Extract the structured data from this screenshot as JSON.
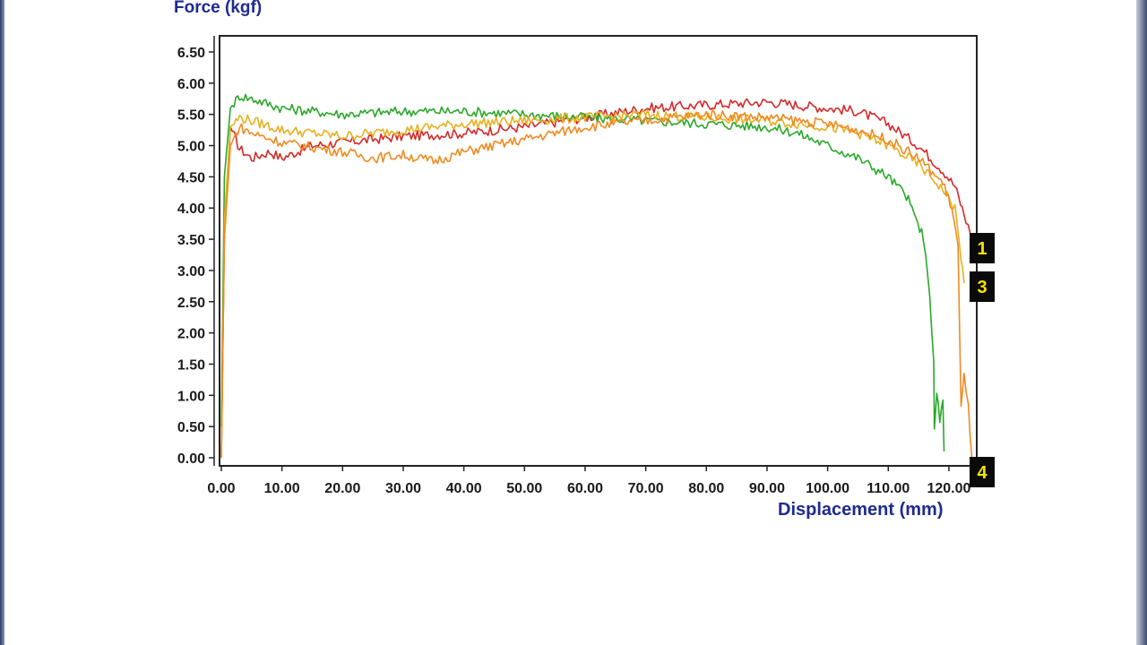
{
  "chart_data": {
    "type": "line",
    "ylabel": "Force (kgf)",
    "xlabel": "Displacement (mm)",
    "xlim": [
      0,
      124
    ],
    "ylim": [
      0,
      6.5
    ],
    "grid": false,
    "x_ticks": [
      "0.00",
      "10.00",
      "20.00",
      "30.00",
      "40.00",
      "50.00",
      "60.00",
      "70.00",
      "80.00",
      "90.00",
      "100.00",
      "110.00",
      "120.00"
    ],
    "y_ticks": [
      "0.00",
      "0.50",
      "1.00",
      "1.50",
      "2.00",
      "2.50",
      "3.00",
      "3.50",
      "4.00",
      "4.50",
      "5.00",
      "5.50",
      "6.00",
      "6.50"
    ],
    "series": [
      {
        "color": "#d42a2a",
        "x": [
          0,
          0.5,
          1.5,
          3,
          5,
          8,
          10,
          15,
          20,
          25,
          30,
          40,
          50,
          60,
          70,
          80,
          90,
          100,
          105,
          110,
          115,
          119,
          121,
          122.5,
          123.5
        ],
        "y": [
          0,
          3.5,
          5.3,
          4.95,
          4.8,
          4.9,
          4.8,
          5.0,
          5.05,
          5.1,
          5.15,
          5.2,
          5.3,
          5.45,
          5.6,
          5.65,
          5.7,
          5.6,
          5.55,
          5.35,
          5.0,
          4.6,
          4.35,
          3.9,
          3.6
        ]
      },
      {
        "color": "#2aa82a",
        "x": [
          0,
          0.5,
          1.5,
          3,
          5,
          10,
          20,
          30,
          40,
          50,
          60,
          70,
          80,
          90,
          95,
          100,
          105,
          110,
          113,
          115.5,
          116.5,
          117.5,
          117.6,
          118,
          118.5,
          119,
          119.2
        ],
        "y": [
          0.5,
          4.5,
          5.6,
          5.8,
          5.75,
          5.6,
          5.5,
          5.55,
          5.55,
          5.5,
          5.45,
          5.4,
          5.35,
          5.3,
          5.2,
          5.0,
          4.8,
          4.5,
          4.2,
          3.6,
          3.0,
          1.6,
          0.5,
          1.0,
          0.6,
          0.9,
          0.1
        ]
      },
      {
        "color": "#e6b020",
        "x": [
          0,
          0.5,
          1.5,
          3,
          5,
          10,
          20,
          25,
          30,
          35,
          40,
          50,
          60,
          70,
          80,
          90,
          100,
          105,
          110,
          115,
          119,
          121,
          122,
          122.5
        ],
        "y": [
          0,
          3.8,
          5.3,
          5.45,
          5.4,
          5.25,
          5.15,
          5.2,
          5.25,
          5.3,
          5.35,
          5.4,
          5.45,
          5.5,
          5.45,
          5.4,
          5.3,
          5.2,
          5.0,
          4.7,
          4.3,
          4.0,
          3.2,
          2.8
        ]
      },
      {
        "color": "#f08a20",
        "x": [
          0,
          0.5,
          1.5,
          3,
          5,
          10,
          20,
          25,
          30,
          35,
          40,
          50,
          60,
          70,
          80,
          90,
          100,
          105,
          110,
          115,
          119,
          120.5,
          121.5,
          122,
          122.5,
          123.2,
          123.8
        ],
        "y": [
          0,
          3.5,
          5.0,
          5.3,
          5.2,
          5.05,
          4.9,
          4.8,
          4.85,
          4.75,
          4.9,
          5.1,
          5.3,
          5.4,
          5.5,
          5.45,
          5.35,
          5.25,
          5.1,
          4.8,
          4.4,
          4.0,
          3.4,
          0.8,
          1.3,
          0.8,
          0.0
        ]
      }
    ],
    "markers": [
      "1",
      "3",
      "4"
    ]
  }
}
